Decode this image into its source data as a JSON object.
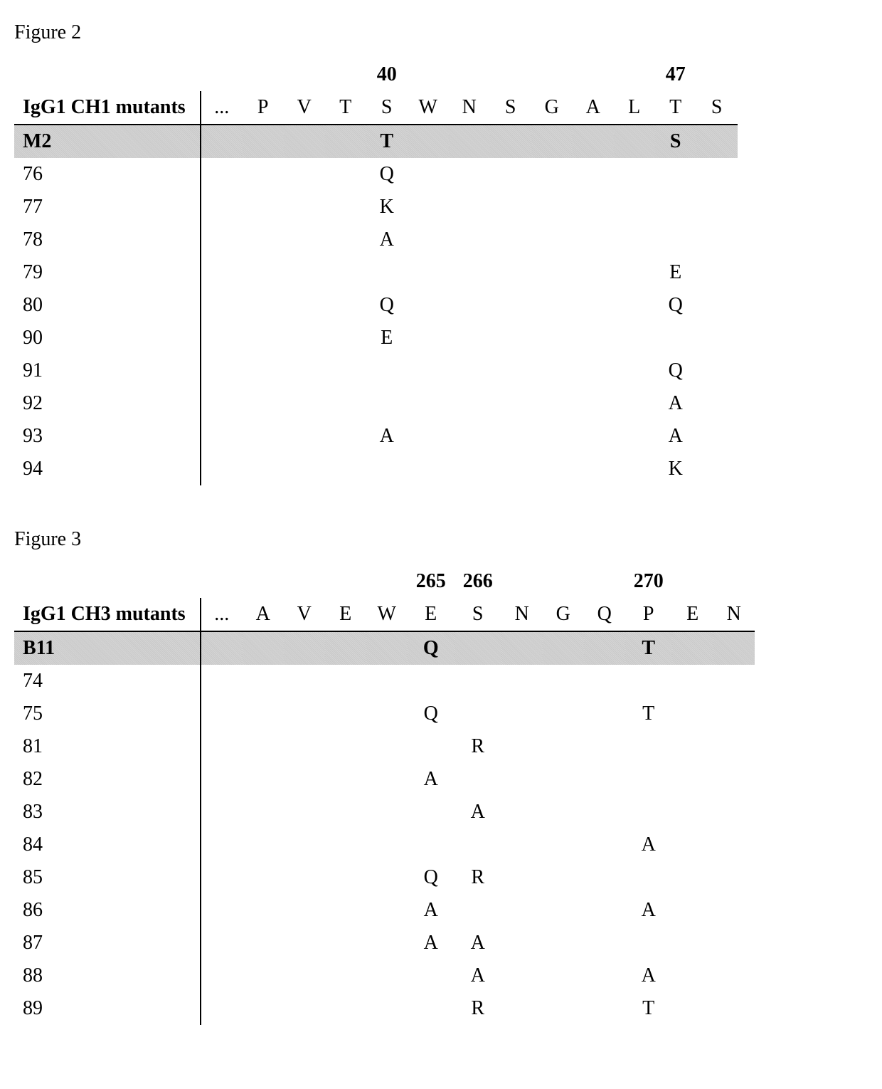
{
  "figure2": {
    "label": "Figure 2",
    "header": "IgG1 CH1 mutants",
    "positions": [
      "",
      "",
      "",
      "",
      "40",
      "",
      "",
      "",
      "",
      "",
      "",
      "47",
      ""
    ],
    "residues": [
      "...",
      "P",
      "V",
      "T",
      "S",
      "W",
      "N",
      "S",
      "G",
      "A",
      "L",
      "T",
      "S"
    ],
    "highlight_id": "M2",
    "highlight": [
      "",
      "",
      "",
      "",
      "T",
      "",
      "",
      "",
      "",
      "",
      "",
      "S",
      ""
    ],
    "rows": [
      {
        "id": "76",
        "cells": [
          "",
          "",
          "",
          "",
          "Q",
          "",
          "",
          "",
          "",
          "",
          "",
          "",
          ""
        ]
      },
      {
        "id": "77",
        "cells": [
          "",
          "",
          "",
          "",
          "K",
          "",
          "",
          "",
          "",
          "",
          "",
          "",
          ""
        ]
      },
      {
        "id": "78",
        "cells": [
          "",
          "",
          "",
          "",
          "A",
          "",
          "",
          "",
          "",
          "",
          "",
          "",
          ""
        ]
      },
      {
        "id": "79",
        "cells": [
          "",
          "",
          "",
          "",
          "",
          "",
          "",
          "",
          "",
          "",
          "",
          "E",
          ""
        ]
      },
      {
        "id": "80",
        "cells": [
          "",
          "",
          "",
          "",
          "Q",
          "",
          "",
          "",
          "",
          "",
          "",
          "Q",
          ""
        ]
      },
      {
        "id": "90",
        "cells": [
          "",
          "",
          "",
          "",
          "E",
          "",
          "",
          "",
          "",
          "",
          "",
          "",
          ""
        ]
      },
      {
        "id": "91",
        "cells": [
          "",
          "",
          "",
          "",
          "",
          "",
          "",
          "",
          "",
          "",
          "",
          "Q",
          ""
        ]
      },
      {
        "id": "92",
        "cells": [
          "",
          "",
          "",
          "",
          "",
          "",
          "",
          "",
          "",
          "",
          "",
          "A",
          ""
        ]
      },
      {
        "id": "93",
        "cells": [
          "",
          "",
          "",
          "",
          "A",
          "",
          "",
          "",
          "",
          "",
          "",
          "A",
          ""
        ]
      },
      {
        "id": "94",
        "cells": [
          "",
          "",
          "",
          "",
          "",
          "",
          "",
          "",
          "",
          "",
          "",
          "K",
          ""
        ]
      }
    ]
  },
  "figure3": {
    "label": "Figure 3",
    "header": "IgG1 CH3 mutants",
    "positions": [
      "",
      "",
      "",
      "",
      "",
      "265",
      "266",
      "",
      "",
      "",
      "270",
      "",
      ""
    ],
    "residues": [
      "...",
      "A",
      "V",
      "E",
      "W",
      "E",
      "S",
      "N",
      "G",
      "Q",
      "P",
      "E",
      "N"
    ],
    "highlight_id": "B11",
    "highlight": [
      "",
      "",
      "",
      "",
      "",
      "Q",
      "",
      "",
      "",
      "",
      "T",
      "",
      ""
    ],
    "rows": [
      {
        "id": "74",
        "cells": [
          "",
          "",
          "",
          "",
          "",
          "",
          "",
          "",
          "",
          "",
          "",
          "",
          ""
        ]
      },
      {
        "id": "75",
        "cells": [
          "",
          "",
          "",
          "",
          "",
          "Q",
          "",
          "",
          "",
          "",
          "T",
          "",
          ""
        ]
      },
      {
        "id": "81",
        "cells": [
          "",
          "",
          "",
          "",
          "",
          "",
          "R",
          "",
          "",
          "",
          "",
          "",
          ""
        ]
      },
      {
        "id": "82",
        "cells": [
          "",
          "",
          "",
          "",
          "",
          "A",
          "",
          "",
          "",
          "",
          "",
          "",
          ""
        ]
      },
      {
        "id": "83",
        "cells": [
          "",
          "",
          "",
          "",
          "",
          "",
          "A",
          "",
          "",
          "",
          "",
          "",
          ""
        ]
      },
      {
        "id": "84",
        "cells": [
          "",
          "",
          "",
          "",
          "",
          "",
          "",
          "",
          "",
          "",
          "A",
          "",
          ""
        ]
      },
      {
        "id": "85",
        "cells": [
          "",
          "",
          "",
          "",
          "",
          "Q",
          "R",
          "",
          "",
          "",
          "",
          "",
          ""
        ]
      },
      {
        "id": "86",
        "cells": [
          "",
          "",
          "",
          "",
          "",
          "A",
          "",
          "",
          "",
          "",
          "A",
          "",
          ""
        ]
      },
      {
        "id": "87",
        "cells": [
          "",
          "",
          "",
          "",
          "",
          "A",
          "A",
          "",
          "",
          "",
          "",
          "",
          ""
        ]
      },
      {
        "id": "88",
        "cells": [
          "",
          "",
          "",
          "",
          "",
          "",
          "A",
          "",
          "",
          "",
          "A",
          "",
          ""
        ]
      },
      {
        "id": "89",
        "cells": [
          "",
          "",
          "",
          "",
          "",
          "",
          "R",
          "",
          "",
          "",
          "T",
          "",
          ""
        ]
      }
    ]
  }
}
